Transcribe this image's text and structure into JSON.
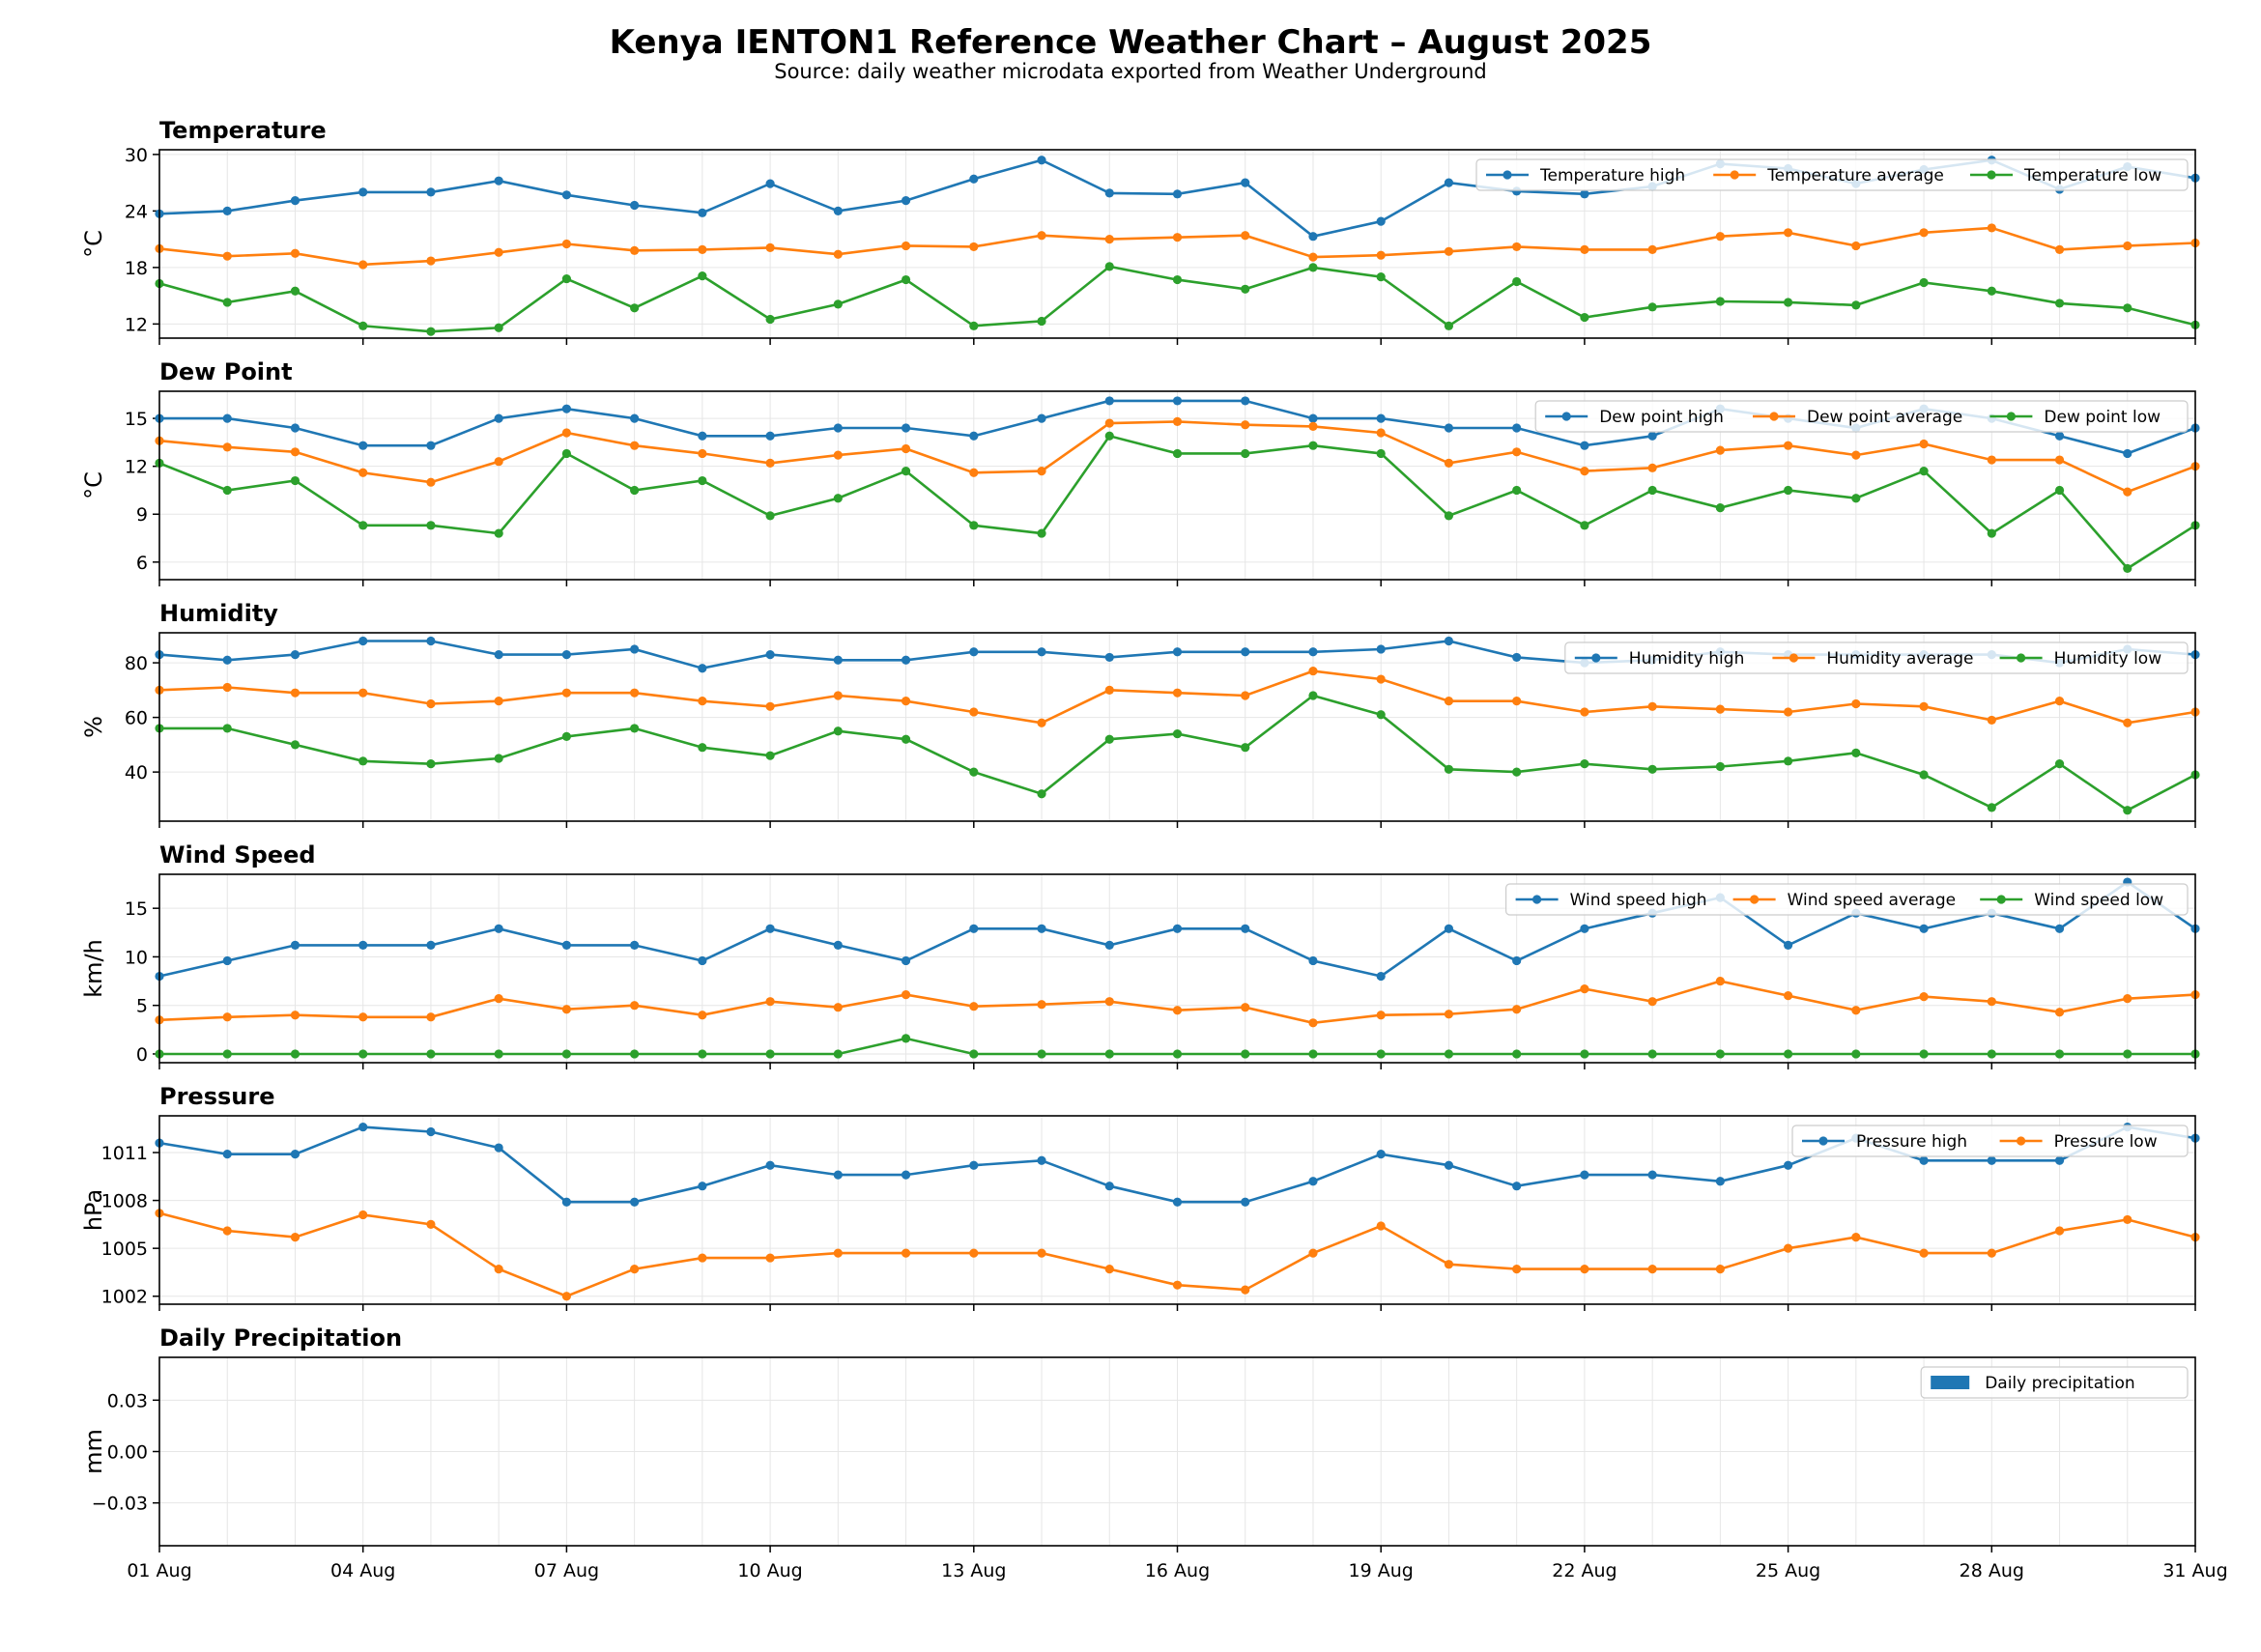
{
  "title": "Kenya IENTON1 Reference Weather Chart – August 2025",
  "subtitle": "Source: daily weather microdata exported from Weather Underground",
  "colors": {
    "high": "#1f77b4",
    "average": "#ff7f0e",
    "low": "#2ca02c"
  },
  "chart_data": [
    {
      "type": "line",
      "title": "Temperature",
      "ylabel": "°C",
      "ylim": [
        10.5,
        30.5
      ],
      "yticks": [
        12,
        18,
        24,
        30
      ],
      "yticklabels": [
        "12",
        "18",
        "24",
        "30"
      ],
      "x": [
        "2025-08-01",
        "2025-08-02",
        "2025-08-03",
        "2025-08-04",
        "2025-08-05",
        "2025-08-06",
        "2025-08-07",
        "2025-08-08",
        "2025-08-09",
        "2025-08-10",
        "2025-08-11",
        "2025-08-12",
        "2025-08-13",
        "2025-08-14",
        "2025-08-15",
        "2025-08-16",
        "2025-08-17",
        "2025-08-18",
        "2025-08-19",
        "2025-08-20",
        "2025-08-21",
        "2025-08-22",
        "2025-08-23",
        "2025-08-24",
        "2025-08-25",
        "2025-08-26",
        "2025-08-27",
        "2025-08-28",
        "2025-08-29",
        "2025-08-30",
        "2025-08-31"
      ],
      "series": [
        {
          "name": "Temperature high",
          "values": [
            23.7,
            24.0,
            25.1,
            26.0,
            26.0,
            27.2,
            25.7,
            24.6,
            23.8,
            26.9,
            24.0,
            25.1,
            27.4,
            29.4,
            25.9,
            25.8,
            27.0,
            21.3,
            22.9,
            27.0,
            26.1,
            25.8,
            26.6,
            29.0,
            28.5,
            26.9,
            28.4,
            29.4,
            26.3,
            28.7,
            27.5
          ]
        },
        {
          "name": "Temperature average",
          "values": [
            20.0,
            19.2,
            19.5,
            18.3,
            18.7,
            19.6,
            20.5,
            19.8,
            19.9,
            20.1,
            19.4,
            20.3,
            20.2,
            21.4,
            21.0,
            21.2,
            21.4,
            19.1,
            19.3,
            19.7,
            20.2,
            19.9,
            19.9,
            21.3,
            21.7,
            20.3,
            21.7,
            22.2,
            19.9,
            20.3,
            20.6
          ]
        },
        {
          "name": "Temperature low",
          "values": [
            16.3,
            14.3,
            15.5,
            11.8,
            11.2,
            11.6,
            16.8,
            13.7,
            17.1,
            12.5,
            14.1,
            16.7,
            11.8,
            12.3,
            18.1,
            16.7,
            15.7,
            18.0,
            17.0,
            11.8,
            16.5,
            12.7,
            13.8,
            14.4,
            14.3,
            14.0,
            16.4,
            15.5,
            14.2,
            13.7,
            11.9
          ]
        }
      ],
      "legend": "upper-right"
    },
    {
      "type": "line",
      "title": "Dew Point",
      "ylabel": "°C",
      "ylim": [
        4.9,
        16.7
      ],
      "yticks": [
        6,
        9,
        12,
        15
      ],
      "yticklabels": [
        "6",
        "9",
        "12",
        "15"
      ],
      "series": [
        {
          "name": "Dew point high",
          "values": [
            15.0,
            15.0,
            14.4,
            13.3,
            13.3,
            15.0,
            15.6,
            15.0,
            13.9,
            13.9,
            14.4,
            14.4,
            13.9,
            15.0,
            16.1,
            16.1,
            16.1,
            15.0,
            15.0,
            14.4,
            14.4,
            13.3,
            13.9,
            15.6,
            15.0,
            14.4,
            15.6,
            15.0,
            13.9,
            12.8,
            14.4
          ]
        },
        {
          "name": "Dew point average",
          "values": [
            13.6,
            13.2,
            12.9,
            11.6,
            11.0,
            12.3,
            14.1,
            13.3,
            12.8,
            12.2,
            12.7,
            13.1,
            11.6,
            11.7,
            14.7,
            14.8,
            14.6,
            14.5,
            14.1,
            12.2,
            12.9,
            11.7,
            11.9,
            13.0,
            13.3,
            12.7,
            13.4,
            12.4,
            12.4,
            10.4,
            12.0
          ]
        },
        {
          "name": "Dew point low",
          "values": [
            12.2,
            10.5,
            11.1,
            8.3,
            8.3,
            7.8,
            12.8,
            10.5,
            11.1,
            8.9,
            10.0,
            11.7,
            8.3,
            7.8,
            13.9,
            12.8,
            12.8,
            13.3,
            12.8,
            8.9,
            10.5,
            8.3,
            10.5,
            9.4,
            10.5,
            10.0,
            11.7,
            7.8,
            10.5,
            5.6,
            8.3
          ]
        }
      ],
      "legend": "upper-right"
    },
    {
      "type": "line",
      "title": "Humidity",
      "ylabel": "%",
      "ylim": [
        22,
        91
      ],
      "yticks": [
        40,
        60,
        80
      ],
      "yticklabels": [
        "40",
        "60",
        "80"
      ],
      "series": [
        {
          "name": "Humidity high",
          "values": [
            83,
            81,
            83,
            88,
            88,
            83,
            83,
            85,
            78,
            83,
            81,
            81,
            84,
            84,
            82,
            84,
            84,
            84,
            85,
            88,
            82,
            80,
            81,
            84,
            83,
            83,
            83,
            83,
            80,
            85,
            83
          ]
        },
        {
          "name": "Humidity average",
          "values": [
            70,
            71,
            69,
            69,
            65,
            66,
            69,
            69,
            66,
            64,
            68,
            66,
            62,
            58,
            70,
            69,
            68,
            77,
            74,
            66,
            66,
            62,
            64,
            63,
            62,
            65,
            64,
            59,
            66,
            58,
            62
          ]
        },
        {
          "name": "Humidity low",
          "values": [
            56,
            56,
            50,
            44,
            43,
            45,
            53,
            56,
            49,
            46,
            55,
            52,
            40,
            32,
            52,
            54,
            49,
            68,
            61,
            41,
            40,
            43,
            41,
            42,
            44,
            47,
            39,
            27,
            43,
            26,
            39
          ]
        }
      ],
      "legend": "upper-right"
    },
    {
      "type": "line",
      "title": "Wind Speed",
      "ylabel": "km/h",
      "ylim": [
        -0.9,
        18.5
      ],
      "yticks": [
        0,
        5,
        10,
        15
      ],
      "yticklabels": [
        "0",
        "5",
        "10",
        "15"
      ],
      "series": [
        {
          "name": "Wind speed high",
          "values": [
            8.0,
            9.6,
            11.2,
            11.2,
            11.2,
            12.9,
            11.2,
            11.2,
            9.6,
            12.9,
            11.2,
            9.6,
            12.9,
            12.9,
            11.2,
            12.9,
            12.9,
            9.6,
            8.0,
            12.9,
            9.6,
            12.9,
            14.5,
            16.1,
            11.2,
            14.5,
            12.9,
            14.5,
            12.9,
            17.7,
            12.9
          ]
        },
        {
          "name": "Wind speed average",
          "values": [
            3.5,
            3.8,
            4.0,
            3.8,
            3.8,
            5.7,
            4.6,
            5.0,
            4.0,
            5.4,
            4.8,
            6.1,
            4.9,
            5.1,
            5.4,
            4.5,
            4.8,
            3.2,
            4.0,
            4.1,
            4.6,
            6.7,
            5.4,
            7.5,
            6.0,
            4.5,
            5.9,
            5.4,
            4.3,
            5.7,
            6.1
          ]
        },
        {
          "name": "Wind speed low",
          "values": [
            0,
            0,
            0,
            0,
            0,
            0,
            0,
            0,
            0,
            0,
            0,
            1.6,
            0,
            0,
            0,
            0,
            0,
            0,
            0,
            0,
            0,
            0,
            0,
            0,
            0,
            0,
            0,
            0,
            0,
            0,
            0
          ]
        }
      ],
      "legend": "upper-right"
    },
    {
      "type": "line",
      "title": "Pressure",
      "ylabel": "hPa",
      "ylim": [
        1001.5,
        1013.3
      ],
      "yticks": [
        1002,
        1005,
        1008,
        1011
      ],
      "yticklabels": [
        "1002",
        "1005",
        "1008",
        "1011"
      ],
      "series": [
        {
          "name": "Pressure high",
          "values": [
            1011.6,
            1010.9,
            1010.9,
            1012.6,
            1012.3,
            1011.3,
            1007.9,
            1007.9,
            1008.9,
            1010.2,
            1009.6,
            1009.6,
            1010.2,
            1010.5,
            1008.9,
            1007.9,
            1007.9,
            1009.2,
            1010.9,
            1010.2,
            1008.9,
            1009.6,
            1009.6,
            1009.2,
            1010.2,
            1011.9,
            1010.5,
            1010.5,
            1010.5,
            1012.6,
            1011.9
          ]
        },
        {
          "name": "Pressure low",
          "values": [
            1007.2,
            1006.1,
            1005.7,
            1007.1,
            1006.5,
            1003.7,
            1002.0,
            1003.7,
            1004.4,
            1004.4,
            1004.7,
            1004.7,
            1004.7,
            1004.7,
            1003.7,
            1002.7,
            1002.4,
            1004.7,
            1006.4,
            1004.0,
            1003.7,
            1003.7,
            1003.7,
            1003.7,
            1005.0,
            1005.7,
            1004.7,
            1004.7,
            1006.1,
            1006.8,
            1005.7
          ]
        }
      ],
      "legend": "upper-right"
    },
    {
      "type": "bar",
      "title": "Daily Precipitation",
      "ylabel": "mm",
      "ylim": [
        -0.055,
        0.055
      ],
      "yticks": [
        -0.03,
        0.0,
        0.03
      ],
      "yticklabels": [
        "−0.03",
        "0.00",
        "0.03"
      ],
      "series": [
        {
          "name": "Daily precipitation",
          "values": []
        }
      ],
      "legend": "upper-right"
    }
  ],
  "xaxis": {
    "range": [
      "2025-08-01",
      "2025-08-31"
    ],
    "ticklabels": [
      "01 Aug",
      "04 Aug",
      "07 Aug",
      "10 Aug",
      "13 Aug",
      "16 Aug",
      "19 Aug",
      "22 Aug",
      "25 Aug",
      "28 Aug",
      "31 Aug"
    ],
    "grid": true
  }
}
